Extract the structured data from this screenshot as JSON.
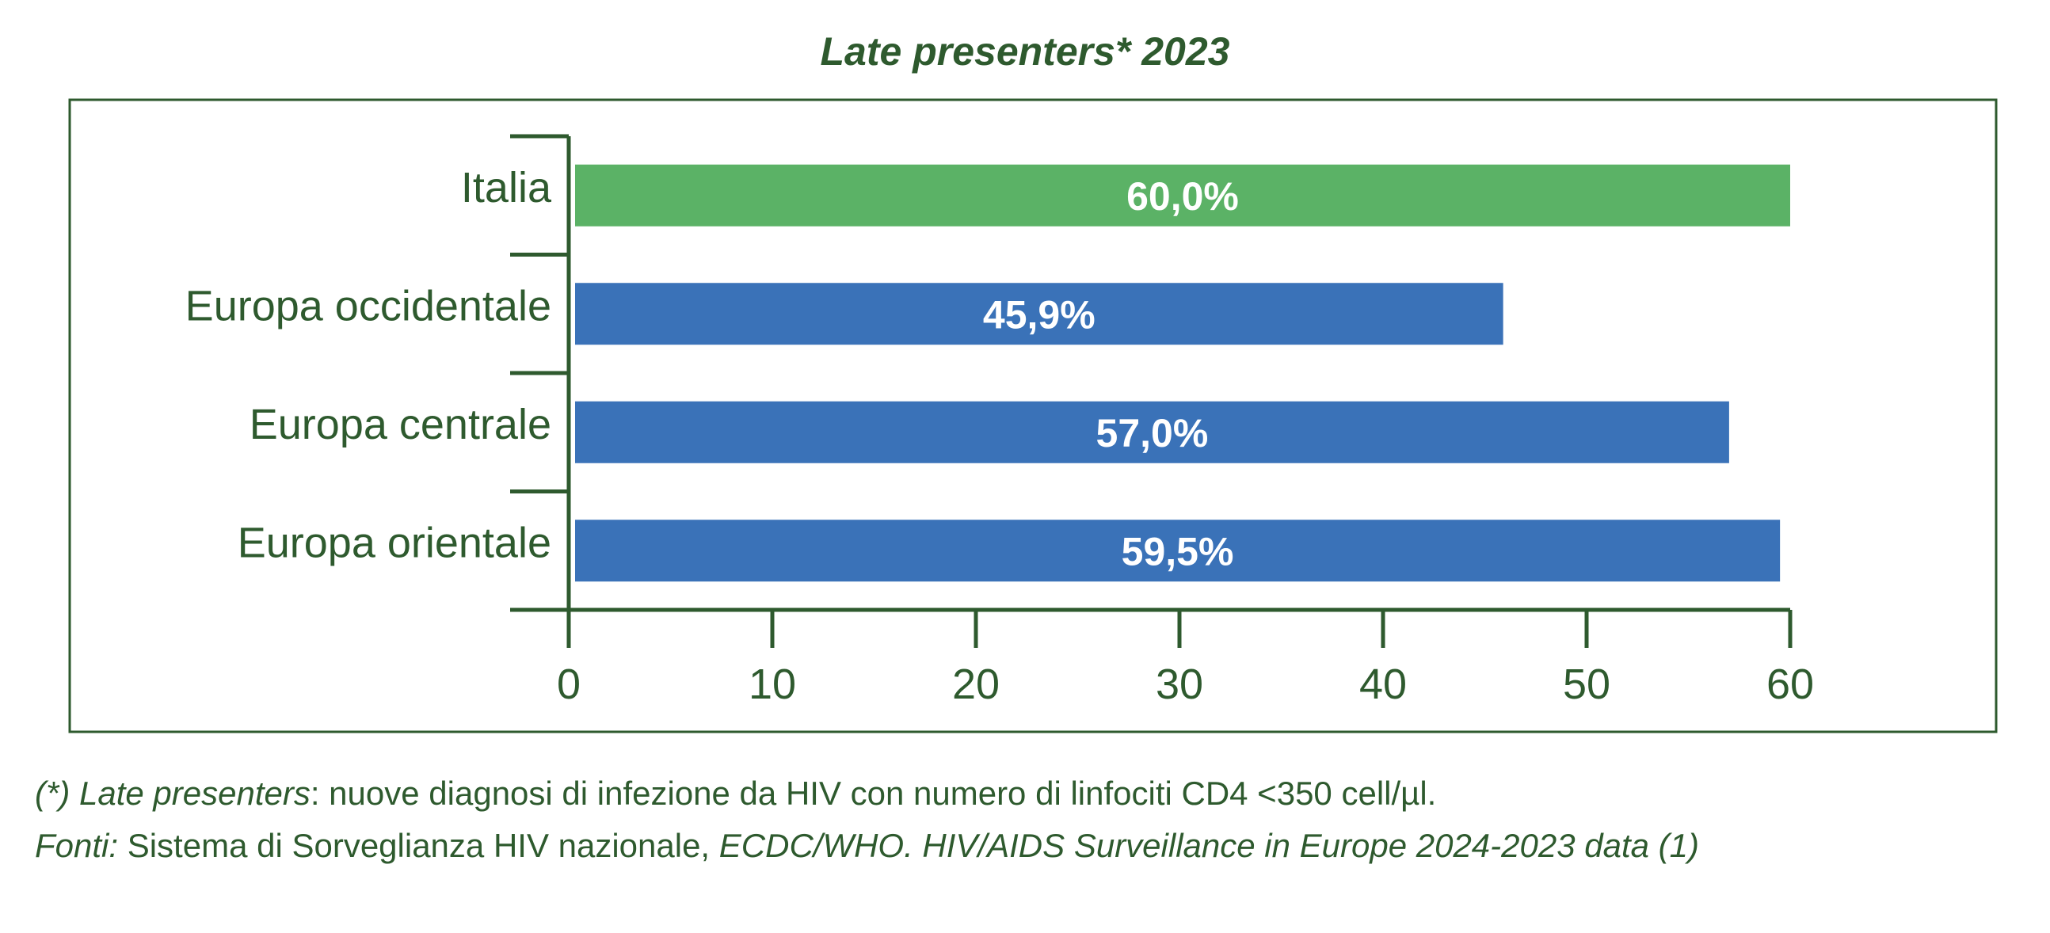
{
  "chart_data": {
    "type": "bar",
    "orientation": "horizontal",
    "title": "Late presenters* 2023",
    "categories": [
      "Italia",
      "Europa occidentale",
      "Europa centrale",
      "Europa orientale"
    ],
    "values": [
      60.0,
      45.9,
      57.0,
      59.5
    ],
    "data_labels": [
      "60,0%",
      "45,9%",
      "57,0%",
      "59,5%"
    ],
    "bar_colors": [
      "#5bb266",
      "#3a72b8",
      "#3a72b8",
      "#3a72b8"
    ],
    "xlim": [
      0,
      60
    ],
    "xticks": [
      0,
      10,
      20,
      30,
      40,
      50,
      60
    ],
    "grid": false,
    "legend": "none"
  },
  "colors": {
    "text": "#2e5a2e",
    "axis": "#2e5a2e",
    "frame": "#2e5a2e"
  },
  "notes": {
    "line1_prefix": "(*) Late presenters",
    "line1_text": ": nuove diagnosi di infezione da HIV con numero di linfociti CD4 <350 cell/µl.",
    "line2_prefix": "Fonti:",
    "line2_text": " Sistema di Sorveglianza HIV nazionale, ",
    "line2_source": "ECDC/WHO. HIV/AIDS Surveillance in Europe 2024-2023 data (1)"
  }
}
